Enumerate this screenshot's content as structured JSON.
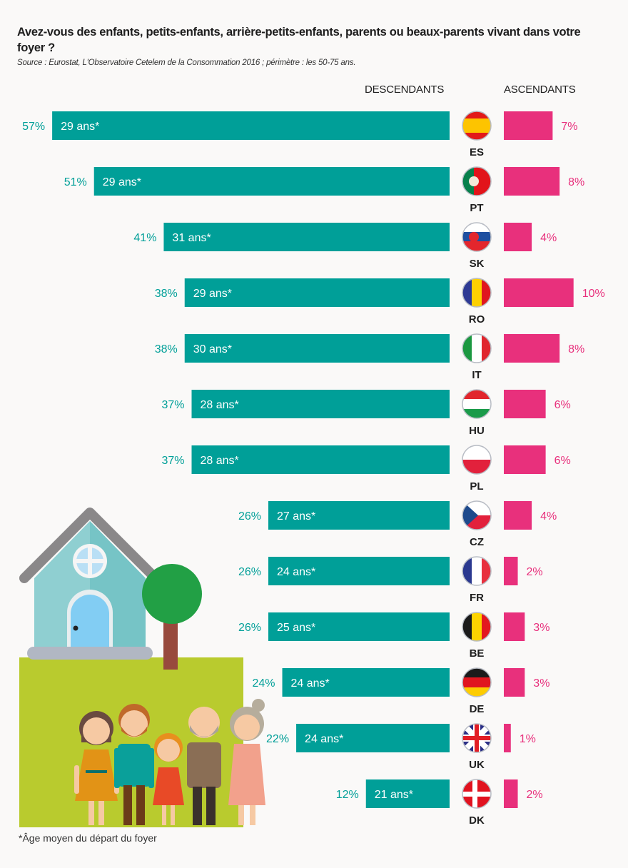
{
  "header": {
    "title": "Avez-vous des enfants, petits-enfants, arrière-petits-enfants, parents ou beaux-parents vivant dans votre foyer ?",
    "source": "Source : Eurostat, L'Observatoire Cetelem de la Consommation 2016 ; périmètre : les 50-75 ans."
  },
  "footnote": "*Âge moyen du départ du foyer",
  "colors": {
    "descendants": "#009f98",
    "ascendants": "#e8307c",
    "label_dark": "#1e1e1e",
    "background": "#faf9f8"
  },
  "chart_data": {
    "type": "bar",
    "orientation": "horizontal-diverging",
    "title": "Avez-vous des enfants, petits-enfants, arrière-petits-enfants, parents ou beaux-parents vivant dans votre foyer ?",
    "xlabel": "",
    "ylabel": "",
    "unit": "%",
    "categories": [
      "ES",
      "PT",
      "SK",
      "RO",
      "IT",
      "HU",
      "PL",
      "CZ",
      "FR",
      "BE",
      "DE",
      "UK",
      "DK"
    ],
    "series": [
      {
        "name": "DESCENDANTS",
        "values": [
          57,
          51,
          41,
          38,
          38,
          37,
          37,
          26,
          26,
          26,
          24,
          22,
          12
        ]
      },
      {
        "name": "ASCENDANTS",
        "values": [
          7,
          8,
          4,
          10,
          8,
          6,
          6,
          4,
          2,
          3,
          3,
          1,
          2
        ]
      }
    ],
    "bar_annotations": [
      "29 ans*",
      "29 ans*",
      "31 ans*",
      "29 ans*",
      "30 ans*",
      "28 ans*",
      "28 ans*",
      "27 ans*",
      "24 ans*",
      "25 ans*",
      "24 ans*",
      "24 ans*",
      "21 ans*"
    ],
    "annotation_meaning": "*Âge moyen du départ du foyer",
    "legend": "top",
    "grid": false
  }
}
